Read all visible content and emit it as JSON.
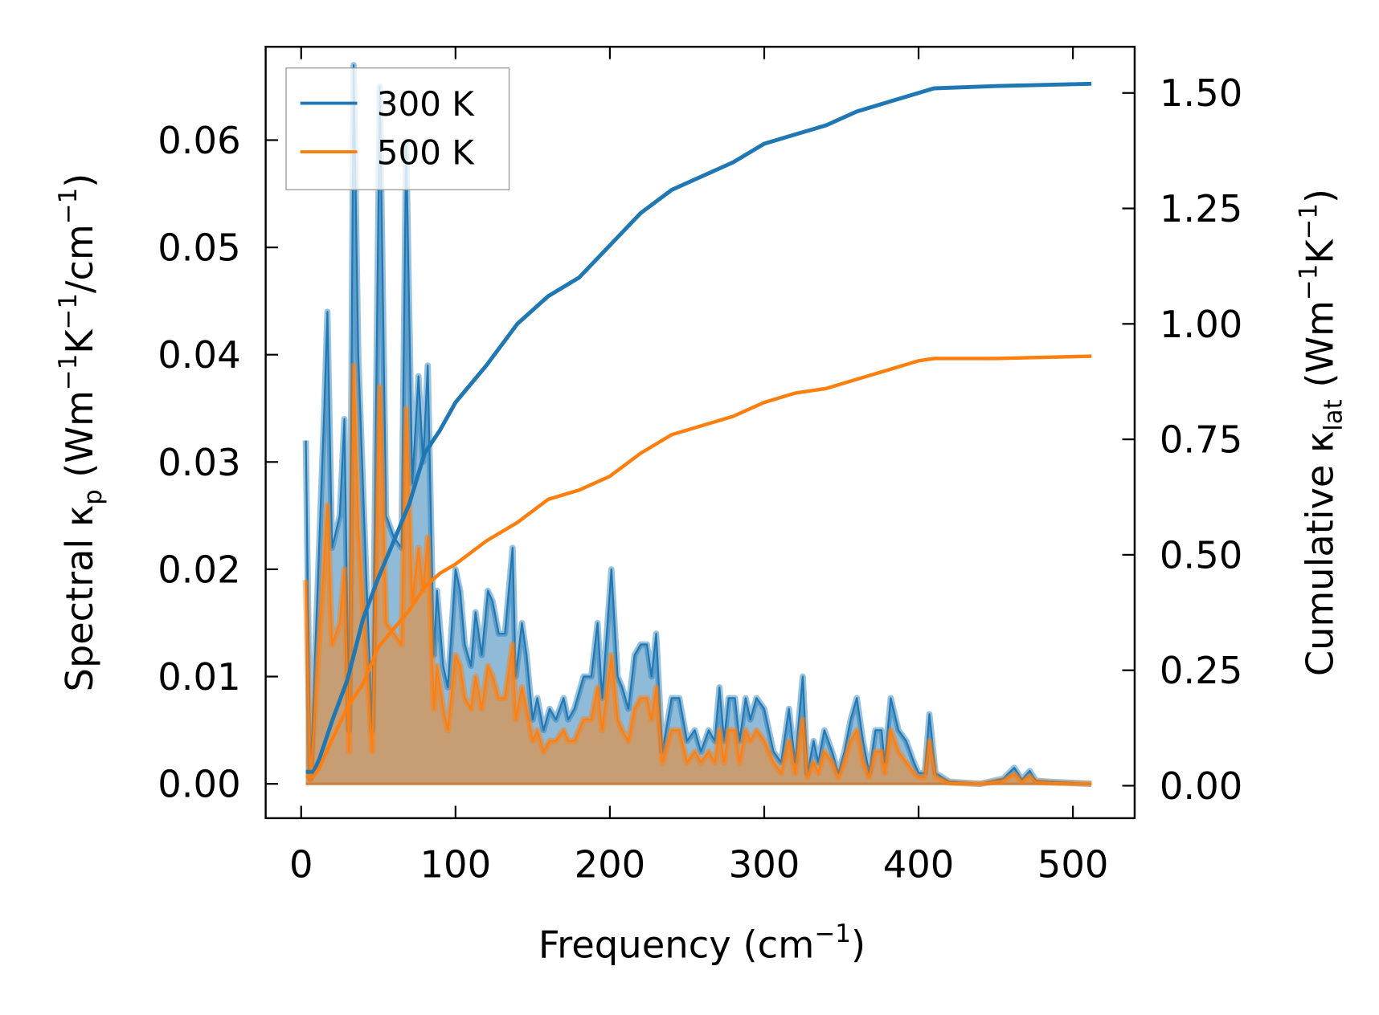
{
  "chart_data": {
    "type": "line",
    "xlabel_parts": [
      "Frequency (cm",
      "−1",
      ")"
    ],
    "ylabel_left_parts": [
      "Spectral κ",
      "p",
      " (Wm",
      "−1",
      "K",
      "−1",
      "/cm",
      "−1",
      ")"
    ],
    "ylabel_right_parts": [
      "Cumulative κ",
      "lat",
      " (Wm",
      "−1",
      "K",
      "−1",
      ")"
    ],
    "xlim": [
      -23,
      540
    ],
    "ylim_left": [
      -0.0032,
      0.0687
    ],
    "ylim_right": [
      -0.0703,
      1.6
    ],
    "xticks": [
      0,
      100,
      200,
      300,
      400,
      500
    ],
    "xtick_labels": [
      "0",
      "100",
      "200",
      "300",
      "400",
      "500"
    ],
    "yticks_left": [
      0,
      0.01,
      0.02,
      0.03,
      0.04,
      0.05,
      0.06
    ],
    "ytick_labels_left": [
      "0.00",
      "0.01",
      "0.02",
      "0.03",
      "0.04",
      "0.05",
      "0.06"
    ],
    "yticks_right": [
      0,
      0.25,
      0.5,
      0.75,
      1.0,
      1.25,
      1.5
    ],
    "ytick_labels_right": [
      "0.00",
      "0.25",
      "0.50",
      "0.75",
      "1.00",
      "1.25",
      "1.50"
    ],
    "legend": {
      "placement": "upper-left",
      "entries": [
        "300 K",
        "500 K"
      ]
    },
    "colors": {
      "300 K": "#1f77b4",
      "500 K": "#ff7f0e"
    },
    "x": [
      3,
      6,
      15,
      17,
      20,
      25,
      28,
      31,
      34,
      37,
      42,
      46,
      51,
      55,
      60,
      65,
      68,
      72,
      76,
      79,
      82,
      86,
      88,
      92,
      95,
      100,
      103,
      106,
      110,
      113,
      117,
      121,
      124,
      128,
      132,
      137,
      139,
      143,
      146,
      150,
      153,
      157,
      161,
      165,
      170,
      173,
      177,
      183,
      188,
      192,
      195,
      201,
      205,
      208,
      212,
      216,
      220,
      224,
      227,
      230,
      234,
      240,
      245,
      250,
      255,
      259,
      264,
      268,
      271,
      274,
      277,
      281,
      284,
      288,
      291,
      295,
      300,
      306,
      311,
      316,
      320,
      325,
      328,
      332,
      335,
      339,
      344,
      348,
      352,
      356,
      360,
      364,
      368,
      372,
      376,
      378,
      382,
      387,
      392,
      397,
      400,
      404,
      407,
      411,
      420,
      440,
      455,
      462,
      467,
      472,
      476,
      485,
      512
    ],
    "series": [
      {
        "name": "300 K",
        "kind": "spectral",
        "axis": "left",
        "values": [
          0.032,
          0.0005,
          0.035,
          0.044,
          0.022,
          0.025,
          0.034,
          0.005,
          0.067,
          0.04,
          0.02,
          0.005,
          0.065,
          0.025,
          0.023,
          0.022,
          0.06,
          0.028,
          0.038,
          0.03,
          0.039,
          0.012,
          0.018,
          0.011,
          0.009,
          0.02,
          0.018,
          0.013,
          0.011,
          0.016,
          0.012,
          0.018,
          0.017,
          0.014,
          0.014,
          0.022,
          0.01,
          0.015,
          0.012,
          0.006,
          0.008,
          0.005,
          0.007,
          0.006,
          0.008,
          0.006,
          0.007,
          0.01,
          0.01,
          0.015,
          0.008,
          0.02,
          0.01,
          0.009,
          0.007,
          0.012,
          0.013,
          0.013,
          0.01,
          0.014,
          0.003,
          0.008,
          0.008,
          0.004,
          0.005,
          0.003,
          0.005,
          0.004,
          0.009,
          0.004,
          0.008,
          0.008,
          0.004,
          0.008,
          0.006,
          0.008,
          0.007,
          0.003,
          0.002,
          0.007,
          0.002,
          0.01,
          0.001,
          0.004,
          0.002,
          0.005,
          0.003,
          0.001,
          0.003,
          0.006,
          0.008,
          0.004,
          0.001,
          0.005,
          0.005,
          0.002,
          0.008,
          0.005,
          0.004,
          0.002,
          0.001,
          0.001,
          0.0065,
          0.001,
          0.0002,
          0,
          0.0005,
          0.0015,
          0.0004,
          0.0012,
          0.0003,
          0.0002,
          0
        ]
      },
      {
        "name": "500 K",
        "kind": "spectral",
        "axis": "left",
        "values": [
          0.019,
          0.0003,
          0.021,
          0.026,
          0.013,
          0.015,
          0.02,
          0.003,
          0.039,
          0.024,
          0.012,
          0.003,
          0.037,
          0.015,
          0.014,
          0.013,
          0.035,
          0.017,
          0.022,
          0.018,
          0.023,
          0.007,
          0.011,
          0.007,
          0.005,
          0.012,
          0.011,
          0.008,
          0.007,
          0.01,
          0.007,
          0.011,
          0.01,
          0.008,
          0.008,
          0.013,
          0.006,
          0.009,
          0.007,
          0.004,
          0.005,
          0.003,
          0.004,
          0.004,
          0.005,
          0.004,
          0.004,
          0.006,
          0.006,
          0.009,
          0.005,
          0.012,
          0.006,
          0.005,
          0.004,
          0.007,
          0.008,
          0.008,
          0.006,
          0.009,
          0.002,
          0.005,
          0.005,
          0.002,
          0.003,
          0.002,
          0.003,
          0.002,
          0.005,
          0.002,
          0.005,
          0.005,
          0.002,
          0.005,
          0.004,
          0.005,
          0.004,
          0.002,
          0.001,
          0.004,
          0.001,
          0.006,
          0.0006,
          0.002,
          0.001,
          0.003,
          0.002,
          0.0006,
          0.002,
          0.004,
          0.005,
          0.002,
          0.0006,
          0.003,
          0.003,
          0.001,
          0.005,
          0.003,
          0.002,
          0.001,
          0.0006,
          0.0006,
          0.004,
          0.0006,
          0.0001,
          0,
          0.0003,
          0.0009,
          0.0002,
          0.0007,
          0.0002,
          0.0001,
          0
        ]
      },
      {
        "name": "300 K",
        "kind": "cumulative",
        "axis": "right",
        "x": [
          3,
          8,
          12,
          20,
          30,
          40,
          50,
          60,
          70,
          80,
          90,
          100,
          120,
          140,
          160,
          180,
          200,
          220,
          240,
          260,
          280,
          300,
          320,
          340,
          360,
          380,
          400,
          410,
          450,
          512
        ],
        "values": [
          0.03,
          0.03,
          0.06,
          0.14,
          0.23,
          0.36,
          0.45,
          0.53,
          0.61,
          0.72,
          0.77,
          0.83,
          0.91,
          1.0,
          1.06,
          1.1,
          1.17,
          1.24,
          1.29,
          1.32,
          1.35,
          1.39,
          1.41,
          1.43,
          1.46,
          1.48,
          1.5,
          1.51,
          1.515,
          1.52
        ]
      },
      {
        "name": "500 K",
        "kind": "cumulative",
        "axis": "right",
        "x": [
          3,
          8,
          12,
          20,
          30,
          40,
          50,
          60,
          70,
          80,
          90,
          100,
          120,
          140,
          160,
          180,
          200,
          220,
          240,
          260,
          280,
          300,
          320,
          340,
          360,
          380,
          400,
          410,
          450,
          512
        ],
        "values": [
          0.02,
          0.02,
          0.04,
          0.1,
          0.17,
          0.22,
          0.3,
          0.34,
          0.38,
          0.43,
          0.46,
          0.48,
          0.53,
          0.57,
          0.62,
          0.64,
          0.67,
          0.72,
          0.76,
          0.78,
          0.8,
          0.83,
          0.85,
          0.86,
          0.88,
          0.9,
          0.92,
          0.925,
          0.925,
          0.93
        ]
      }
    ]
  }
}
